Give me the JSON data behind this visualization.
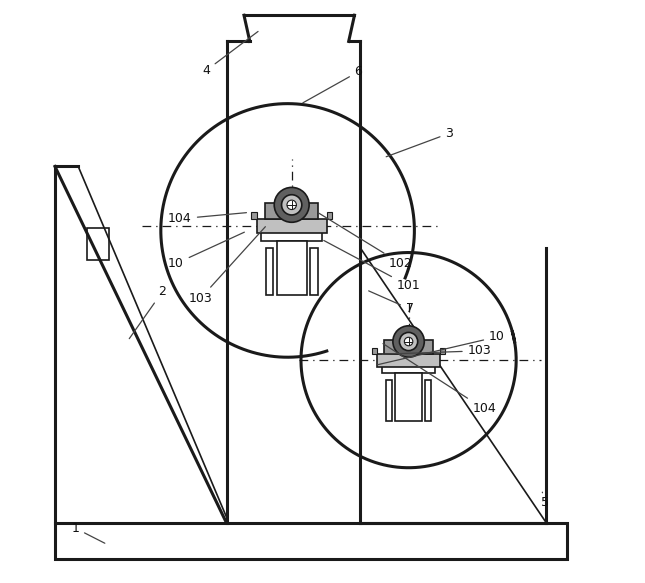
{
  "bg_color": "#ffffff",
  "line_color": "#1a1a1a",
  "gray1": "#999999",
  "gray2": "#606060",
  "gray3": "#c0c0c0",
  "figsize": [
    6.45,
    5.83
  ],
  "dpi": 100,
  "font_size": 9.0
}
